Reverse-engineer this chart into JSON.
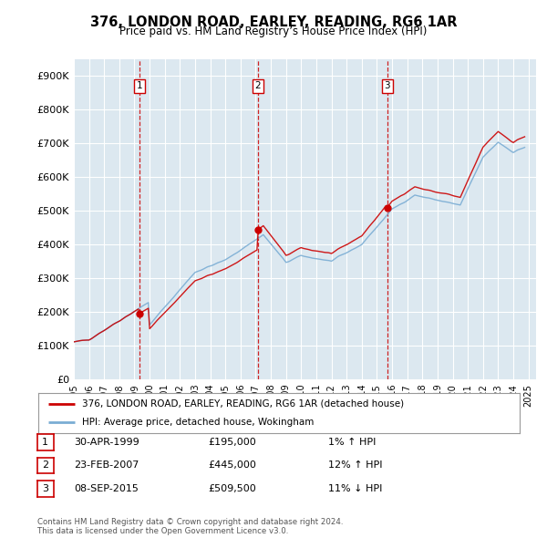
{
  "title": "376, LONDON ROAD, EARLEY, READING, RG6 1AR",
  "subtitle": "Price paid vs. HM Land Registry’s House Price Index (HPI)",
  "ylabel_ticks": [
    "£0",
    "£100K",
    "£200K",
    "£300K",
    "£400K",
    "£500K",
    "£600K",
    "£700K",
    "£800K",
    "£900K"
  ],
  "ytick_values": [
    0,
    100000,
    200000,
    300000,
    400000,
    500000,
    600000,
    700000,
    800000,
    900000
  ],
  "ylim": [
    0,
    950000
  ],
  "xlim_start": 1995.0,
  "xlim_end": 2025.5,
  "sale_dates": [
    1999.33,
    2007.14,
    2015.69
  ],
  "sale_prices": [
    195000,
    445000,
    509500
  ],
  "sale_labels": [
    "1",
    "2",
    "3"
  ],
  "legend_line1": "376, LONDON ROAD, EARLEY, READING, RG6 1AR (detached house)",
  "legend_line2": "HPI: Average price, detached house, Wokingham",
  "table_rows": [
    {
      "label": "1",
      "date": "30-APR-1999",
      "price": "£195,000",
      "hpi": "1% ↑ HPI"
    },
    {
      "label": "2",
      "date": "23-FEB-2007",
      "price": "£445,000",
      "hpi": "12% ↑ HPI"
    },
    {
      "label": "3",
      "date": "08-SEP-2015",
      "price": "£509,500",
      "hpi": "11% ↓ HPI"
    }
  ],
  "footer": "Contains HM Land Registry data © Crown copyright and database right 2024.\nThis data is licensed under the Open Government Licence v3.0.",
  "color_red": "#cc0000",
  "color_blue": "#7aadd4",
  "color_grid": "#c8d8e8",
  "color_vline": "#cc0000",
  "background_color": "#dce8f0",
  "plot_bg": "#dce8f0"
}
